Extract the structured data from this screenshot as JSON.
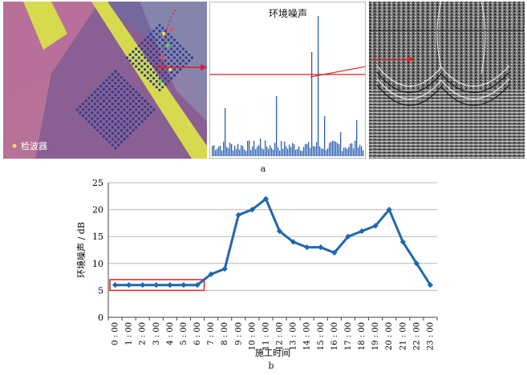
{
  "panel_a": {
    "caption": "a",
    "map_legend_label": "检波器",
    "spectrum_title": "环境噪声",
    "colors": {
      "rock_pink": "#c0729a",
      "rock_purple": "#7a5c8c",
      "band_yellow": "#d7d94f",
      "grid_dot": "#2a3f8f",
      "arrow_red": "#e02020",
      "spectrum_bar": "#2c5fb0"
    }
  },
  "panel_b": {
    "caption": "b"
  },
  "chart_data": {
    "type": "line",
    "xlabel": "施工时间",
    "ylabel": "环境噪声 / dB",
    "categories": [
      "0:00",
      "1:00",
      "2:00",
      "3:00",
      "4:00",
      "5:00",
      "6:00",
      "7:00",
      "8:00",
      "9:00",
      "10:00",
      "11:00",
      "12:00",
      "13:00",
      "14:00",
      "15:00",
      "16:00",
      "17:00",
      "18:00",
      "19:00",
      "20:00",
      "21:00",
      "22:00",
      "23:00"
    ],
    "series": [
      {
        "values": [
          6,
          6,
          6,
          6,
          6,
          6,
          6,
          8,
          9,
          19,
          20,
          22,
          16,
          14,
          13,
          13,
          12,
          15,
          16,
          17,
          20,
          14,
          10,
          6
        ]
      }
    ],
    "ylim": [
      0,
      25
    ],
    "yticks": [
      0,
      5,
      10,
      15,
      20,
      25
    ],
    "grid": true,
    "highlight_box": {
      "x_from": "0:00",
      "x_to": "6:00",
      "y_from": 5,
      "y_to": 7,
      "color": "#e02020"
    },
    "line_color": "#1f67b0"
  }
}
